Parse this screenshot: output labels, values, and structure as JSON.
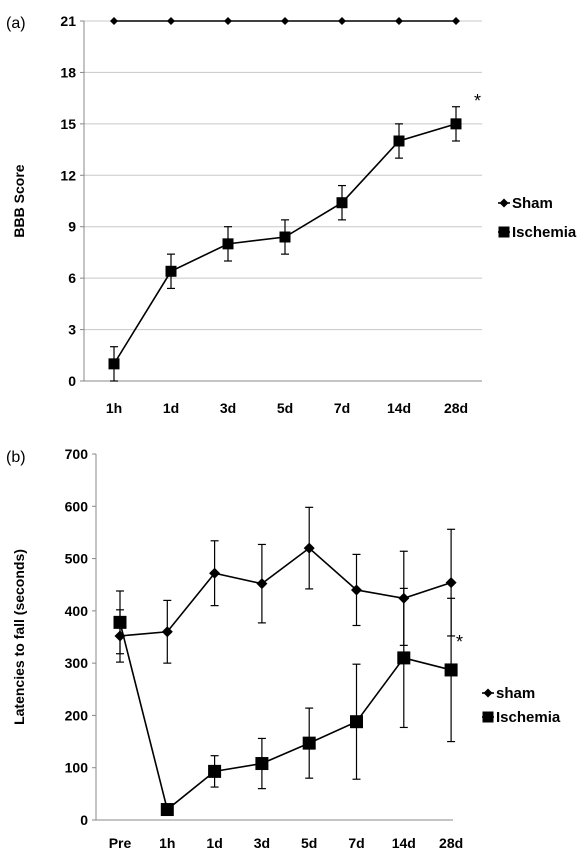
{
  "chart_data": [
    {
      "type": "line",
      "panel_label": "(a)",
      "ylabel": "BBB Score",
      "xlabel": "",
      "categories": [
        "1h",
        "1d",
        "3d",
        "5d",
        "7d",
        "14d",
        "28d"
      ],
      "ylim": [
        0,
        21
      ],
      "yticks": [
        0,
        3,
        6,
        9,
        12,
        15,
        18,
        21
      ],
      "grid": "horizontal",
      "legend_position": "right",
      "annotation": "*",
      "series": [
        {
          "name": "Sham",
          "marker": "diamond",
          "values": [
            21,
            21,
            21,
            21,
            21,
            21,
            21
          ],
          "errors": [
            0,
            0,
            0,
            0,
            0,
            0,
            0
          ]
        },
        {
          "name": "Ischemia",
          "marker": "square",
          "values": [
            1,
            6.4,
            8,
            8.4,
            10.4,
            14,
            15
          ],
          "errors": [
            1,
            1,
            1,
            1,
            1,
            1,
            1
          ]
        }
      ]
    },
    {
      "type": "line",
      "panel_label": "(b)",
      "ylabel": "Latencies to fall (seconds)",
      "xlabel": "",
      "categories": [
        "Pre",
        "1h",
        "1d",
        "3d",
        "5d",
        "7d",
        "14d",
        "28d"
      ],
      "ylim": [
        0,
        700
      ],
      "yticks": [
        0,
        100,
        200,
        300,
        400,
        500,
        600,
        700
      ],
      "grid": "none",
      "legend_position": "right",
      "annotation": "*",
      "series": [
        {
          "name": "sham",
          "marker": "diamond",
          "values": [
            352,
            360,
            472,
            452,
            520,
            440,
            424,
            454
          ],
          "errors": [
            50,
            60,
            62,
            75,
            78,
            68,
            90,
            102
          ]
        },
        {
          "name": "Ischemia",
          "marker": "square",
          "values": [
            378,
            20,
            93,
            108,
            147,
            188,
            310,
            287
          ],
          "errors": [
            60,
            0,
            30,
            48,
            67,
            110,
            133,
            137
          ]
        }
      ]
    }
  ]
}
